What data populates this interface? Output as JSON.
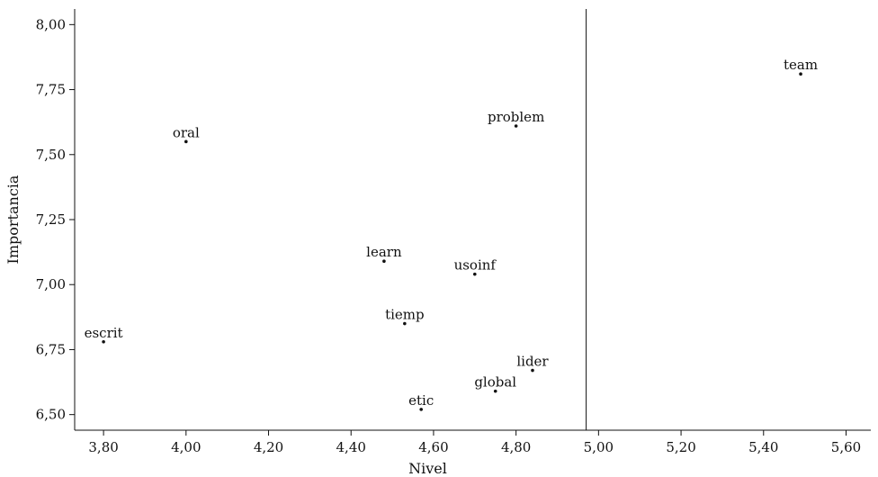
{
  "chart_data": {
    "type": "scatter",
    "title": "",
    "xlabel": "Nivel",
    "ylabel": "Importancia",
    "xlim": [
      3.73,
      5.66
    ],
    "ylim": [
      6.44,
      8.06
    ],
    "x_ticks": [
      3.8,
      4.0,
      4.2,
      4.4,
      4.6,
      4.8,
      5.0,
      5.2,
      5.4,
      5.6
    ],
    "x_tick_labels": [
      "3,80",
      "4,00",
      "4,20",
      "4,40",
      "4,60",
      "4,80",
      "5,00",
      "5,20",
      "5,40",
      "5,60"
    ],
    "y_ticks": [
      6.5,
      6.75,
      7.0,
      7.25,
      7.5,
      7.75,
      8.0
    ],
    "y_tick_labels": [
      "6,50",
      "6,75",
      "7,00",
      "7,25",
      "7,50",
      "7,75",
      "8,00"
    ],
    "reference_line_x": 4.97,
    "grid": false,
    "points": [
      {
        "label": "team",
        "x": 5.49,
        "y": 7.81
      },
      {
        "label": "problem",
        "x": 4.8,
        "y": 7.61
      },
      {
        "label": "oral",
        "x": 4.0,
        "y": 7.55
      },
      {
        "label": "learn",
        "x": 4.48,
        "y": 7.09
      },
      {
        "label": "usoinf",
        "x": 4.7,
        "y": 7.04
      },
      {
        "label": "tiemp",
        "x": 4.53,
        "y": 6.85
      },
      {
        "label": "escrit",
        "x": 3.8,
        "y": 6.78
      },
      {
        "label": "lider",
        "x": 4.84,
        "y": 6.67
      },
      {
        "label": "global",
        "x": 4.75,
        "y": 6.59
      },
      {
        "label": "etic",
        "x": 4.57,
        "y": 6.52
      }
    ]
  }
}
